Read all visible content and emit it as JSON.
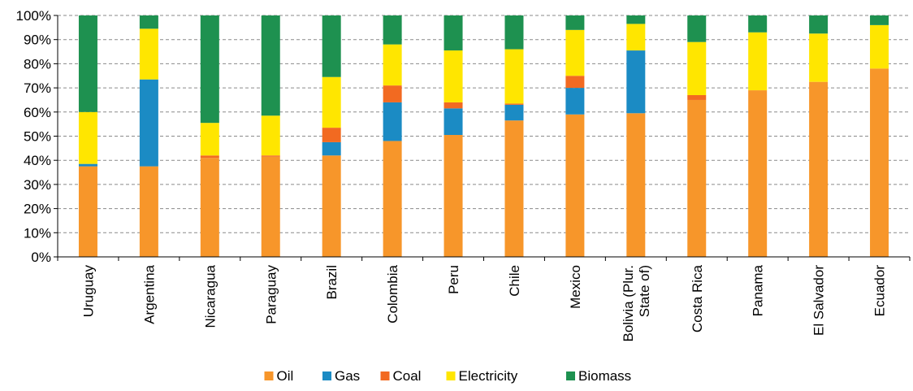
{
  "chart_data": {
    "type": "bar",
    "stacked": true,
    "percent": true,
    "categories": [
      "Uruguay",
      "Argentina",
      "Nicaragua",
      "Paraguay",
      "Brazil",
      "Colombia",
      "Peru",
      "Chile",
      "Mexico",
      "Bolivia (Plur. State of)",
      "Costa Rica",
      "Panama",
      "El Salvador",
      "Ecuador"
    ],
    "category_lines": [
      [
        "Uruguay"
      ],
      [
        "Argentina"
      ],
      [
        "Nicaragua"
      ],
      [
        "Paraguay"
      ],
      [
        "Brazil"
      ],
      [
        "Colombia"
      ],
      [
        "Peru"
      ],
      [
        "Chile"
      ],
      [
        "Mexico"
      ],
      [
        "Bolivia (Plur.",
        "State of)"
      ],
      [
        "Costa Rica"
      ],
      [
        "Panama"
      ],
      [
        "El Salvador"
      ],
      [
        "Ecuador"
      ]
    ],
    "series": [
      {
        "name": "Oil",
        "color": "#F7962A",
        "values": [
          37.5,
          37.5,
          41,
          41.5,
          42,
          48,
          50.5,
          56.5,
          59,
          59.5,
          65,
          69,
          72.5,
          78
        ]
      },
      {
        "name": "Gas",
        "color": "#1B8BC4",
        "values": [
          1,
          36,
          0,
          0,
          5.5,
          16,
          11,
          6.5,
          11,
          26,
          0,
          0,
          0,
          0
        ]
      },
      {
        "name": "Coal",
        "color": "#F26A21",
        "values": [
          0,
          0,
          1,
          0.5,
          6,
          7,
          2.5,
          0.5,
          5,
          0,
          2,
          0,
          0,
          0
        ]
      },
      {
        "name": "Electricity",
        "color": "#FFE600",
        "values": [
          21.5,
          21,
          13.5,
          16.5,
          21,
          17,
          21.5,
          22.5,
          19,
          11,
          22,
          24,
          20,
          18
        ]
      },
      {
        "name": "Biomass",
        "color": "#1E9150",
        "values": [
          40,
          5.5,
          44.5,
          41.5,
          25.5,
          12,
          14.5,
          14,
          6,
          3.5,
          11,
          7,
          7.5,
          4
        ]
      }
    ],
    "ylim": [
      0,
      100
    ],
    "yticks": [
      "0%",
      "10%",
      "20%",
      "30%",
      "40%",
      "50%",
      "60%",
      "70%",
      "80%",
      "90%",
      "100%"
    ],
    "grid": true,
    "legend": "bottom",
    "title": "",
    "xlabel": "",
    "ylabel": ""
  }
}
